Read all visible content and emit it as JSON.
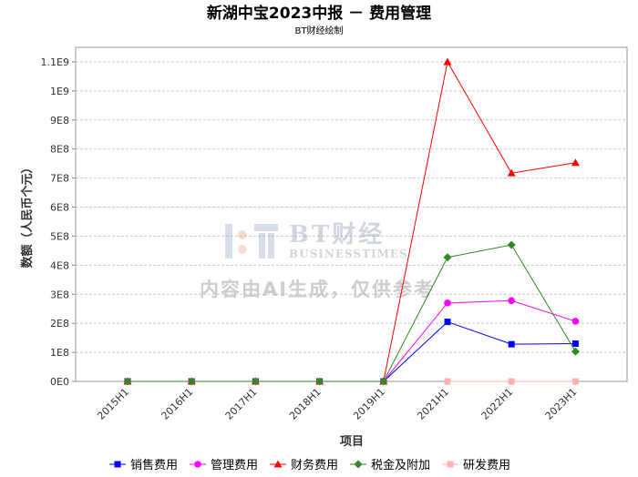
{
  "chart_data": {
    "type": "line",
    "title": "新湖中宝2023中报 － 费用管理",
    "subtitle": "BT财经绘制",
    "xlabel": "项目",
    "ylabel": "数额（人民币个元）",
    "categories": [
      "2015H1",
      "2016H1",
      "2017H1",
      "2018H1",
      "2019H1",
      "2021H1",
      "2022H1",
      "2023H1"
    ],
    "ylim": [
      0,
      1150000000
    ],
    "yticks": [
      0,
      100000000,
      200000000,
      300000000,
      400000000,
      500000000,
      600000000,
      700000000,
      800000000,
      900000000,
      1000000000,
      1100000000
    ],
    "ytick_labels": [
      "0E0",
      "1E8",
      "2E8",
      "3E8",
      "4E8",
      "5E8",
      "6E8",
      "7E8",
      "8E8",
      "9E8",
      "1E9",
      "1.1E9"
    ],
    "grid": true,
    "legend_position": "bottom",
    "series": [
      {
        "name": "销售费用",
        "color": "#0000ff",
        "marker": "square",
        "values": [
          0,
          0,
          0,
          0,
          0,
          205000000,
          128000000,
          130000000
        ]
      },
      {
        "name": "管理费用",
        "color": "#ff00ff",
        "marker": "circle",
        "values": [
          0,
          0,
          0,
          0,
          0,
          270000000,
          278000000,
          207000000
        ]
      },
      {
        "name": "财务费用",
        "color": "#ff0000",
        "marker": "triangle",
        "values": [
          0,
          0,
          0,
          0,
          0,
          1100000000,
          717000000,
          753000000
        ]
      },
      {
        "name": "税金及附加",
        "color": "#2e8b22",
        "marker": "diamond",
        "values": [
          0,
          0,
          0,
          0,
          0,
          427000000,
          470000000,
          103000000
        ]
      },
      {
        "name": "研发费用",
        "color": "#ffb0b0",
        "marker": "square",
        "values": [
          null,
          null,
          null,
          null,
          null,
          0,
          0,
          0
        ]
      }
    ]
  },
  "watermark": {
    "brand": "BT财经",
    "brand_en": "BUSINESSTIMES",
    "note": "内容由AI生成，仅供参考"
  }
}
